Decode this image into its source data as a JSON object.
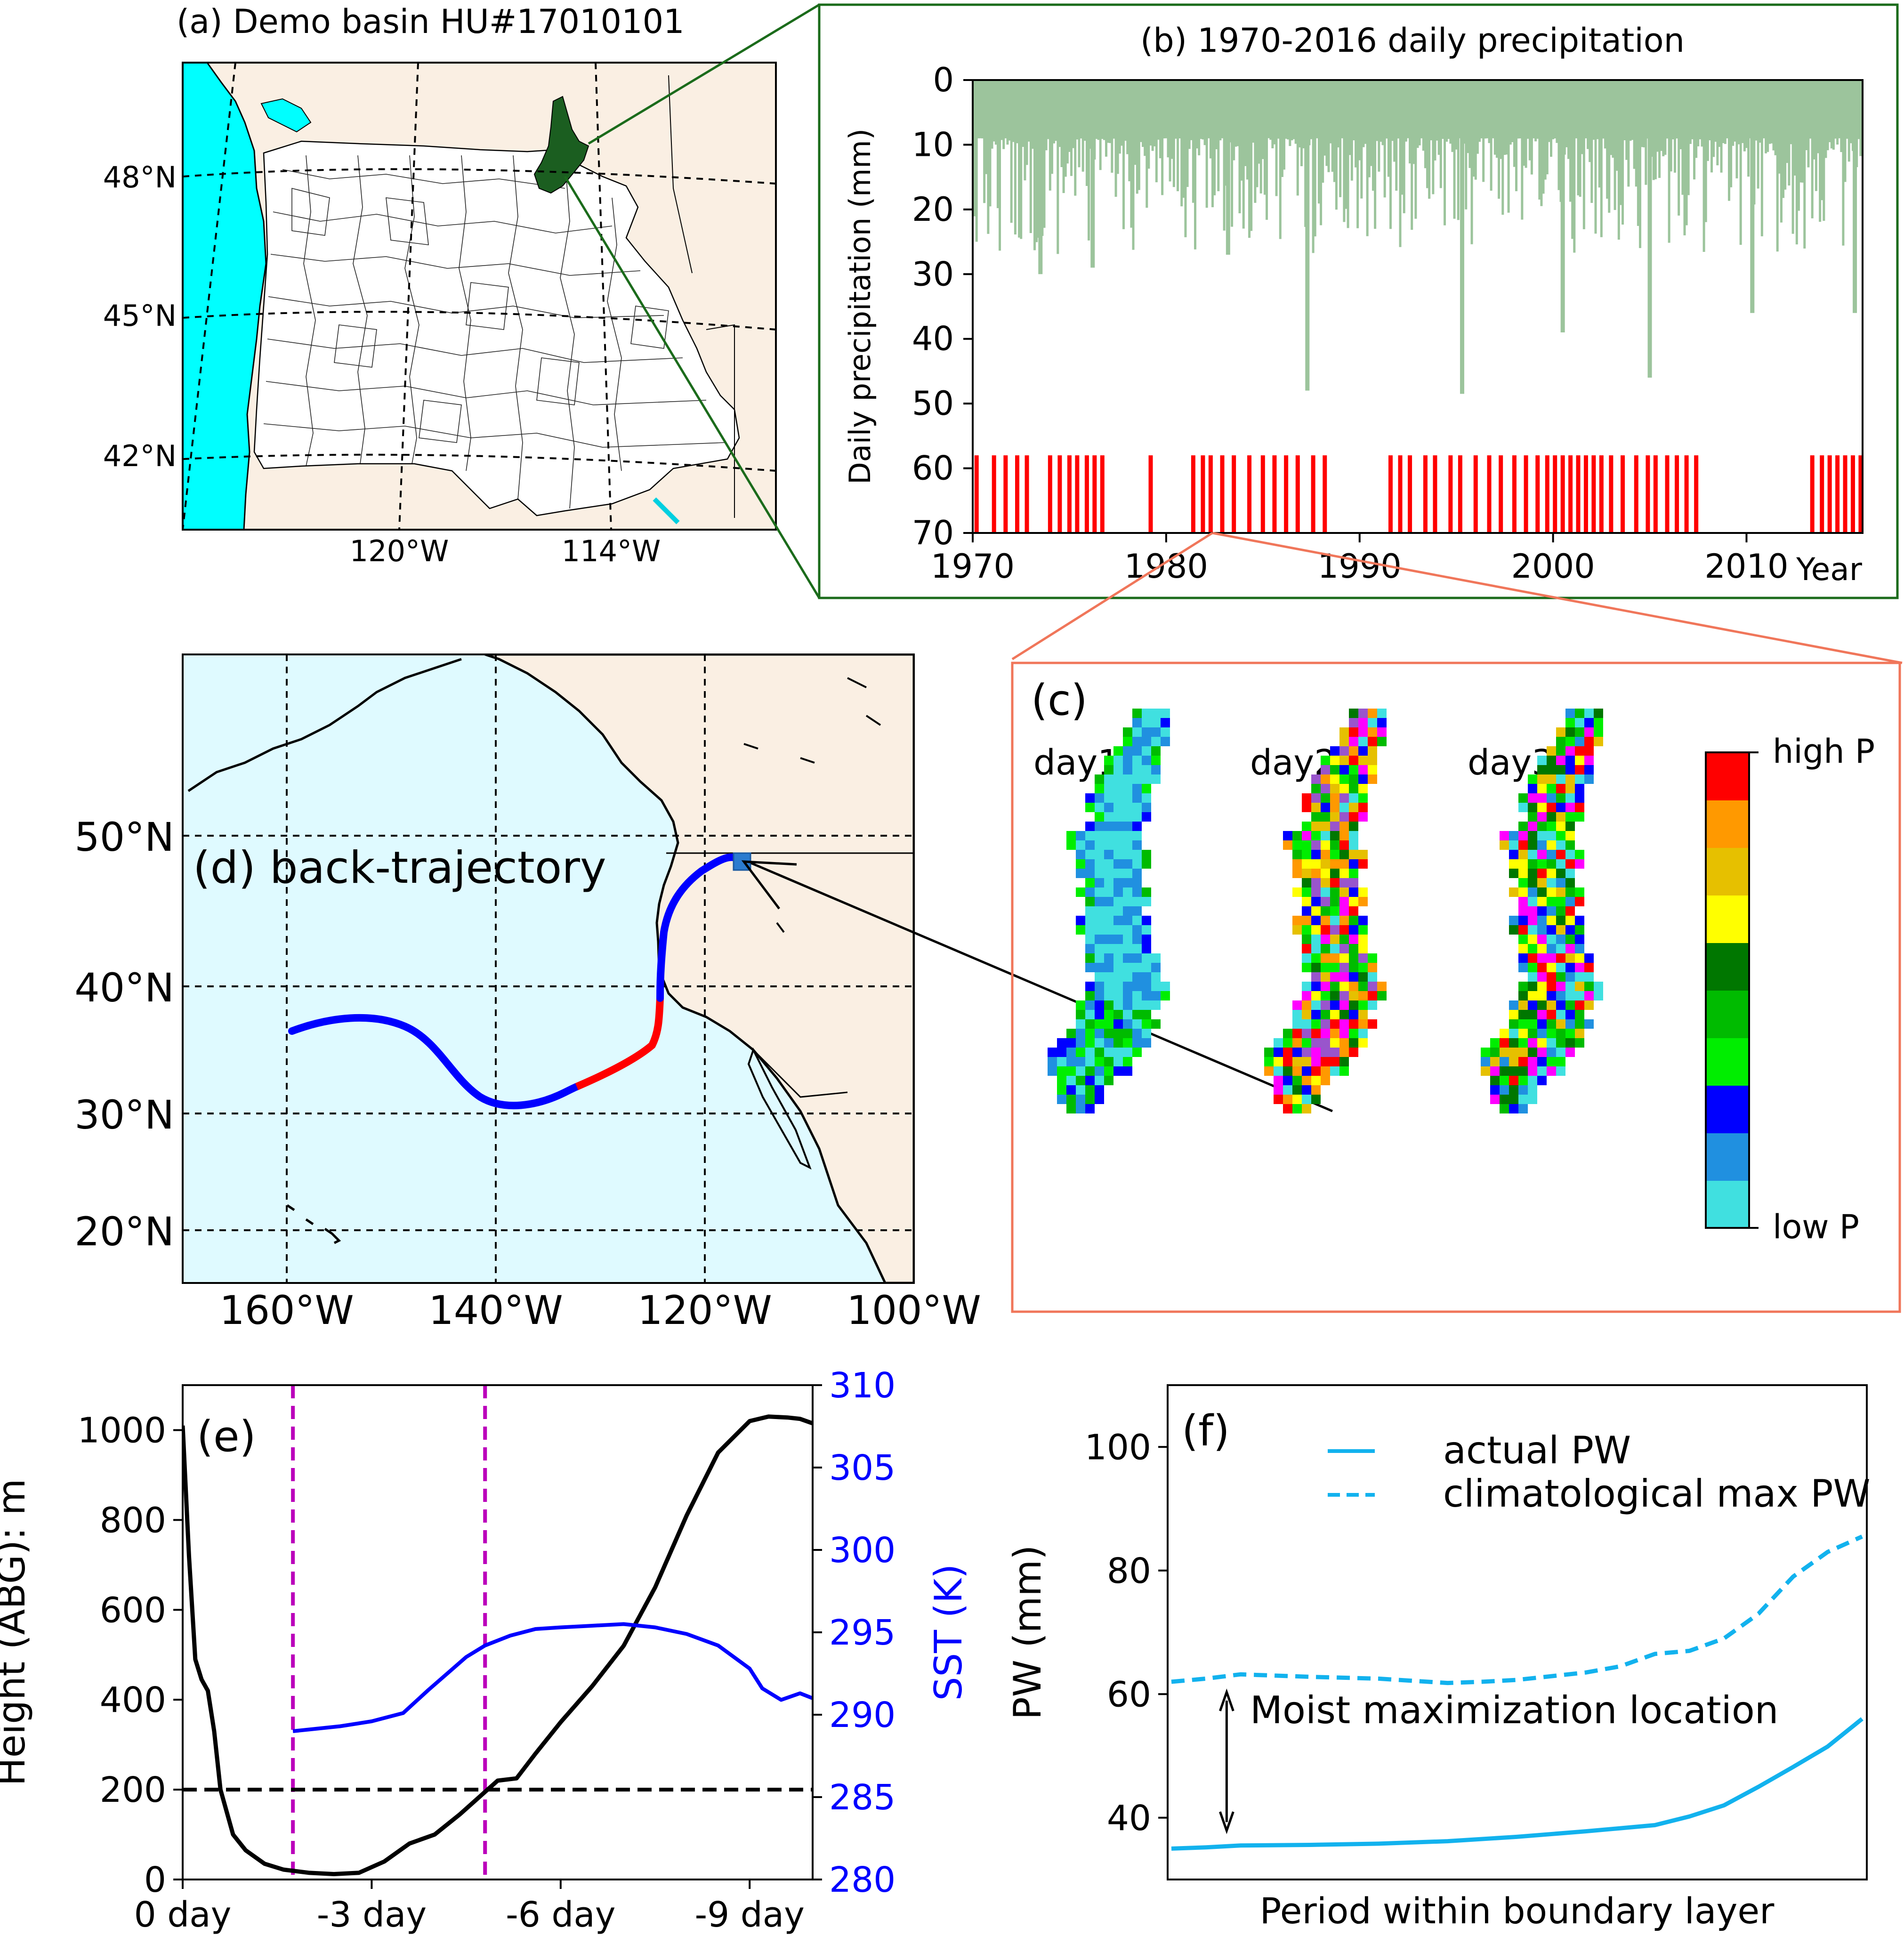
{
  "panels": {
    "a": {
      "title": "(a) Demo basin HU#17010101",
      "lat_labels": [
        "48°N",
        "45°N",
        "42°N"
      ],
      "lon_labels": [
        "120°W",
        "114°W"
      ],
      "colors": {
        "ocean": "#00ffff",
        "land": "#faefe3",
        "basin": "#1b5e20",
        "outline": "#1b6b1b"
      }
    },
    "b": {
      "title": "(b) 1970-2016 daily precipitation",
      "ylabel": "Daily precipitation (mm)",
      "xlabel": "Year",
      "colors": {
        "precip": "#9cc49c",
        "events": "#ff0000",
        "frame": "#1b6b1b"
      }
    },
    "c": {
      "label": "(c)",
      "days": [
        "day1",
        "day2",
        "day3"
      ],
      "cbar_high": "high P",
      "cbar_low": "low P",
      "cbar_colors": [
        "#40e0e0",
        "#2090e0",
        "#0000ff",
        "#00ee00",
        "#00bb00",
        "#007700",
        "#ffff00",
        "#e6c000",
        "#ff9900",
        "#ff0000"
      ],
      "frame_color": "#f0765a"
    },
    "d": {
      "title": "(d) back-trajectory",
      "lat_labels": [
        "50°N",
        "40°N",
        "30°N",
        "20°N"
      ],
      "lon_labels": [
        "160°W",
        "140°W",
        "120°W",
        "100°W"
      ],
      "colors": {
        "ocean": "#dffaff",
        "land": "#faefe3",
        "track": "#0000ff",
        "highlight": "#ff0000"
      }
    },
    "e": {
      "label": "(e)"
    },
    "f": {
      "label": "(f)",
      "annotation": "Moist maximization location"
    }
  },
  "chart_data": [
    {
      "panel": "b",
      "type": "bar",
      "title": "(b) 1970-2016 daily precipitation",
      "xlabel": "Year",
      "ylabel": "Daily precipitation (mm)",
      "xlim": [
        1970,
        2016
      ],
      "ylim": [
        70,
        0
      ],
      "y_inverted": true,
      "xticks": [
        1970,
        1980,
        1990,
        2000,
        2010
      ],
      "yticks": [
        0,
        10,
        20,
        30,
        40,
        50,
        60,
        70
      ],
      "notable_peaks": [
        {
          "x": 1973.5,
          "y": 30
        },
        {
          "x": 1987.3,
          "y": 48
        },
        {
          "x": 1995.3,
          "y": 48.5
        },
        {
          "x": 2005.0,
          "y": 46
        },
        {
          "x": 2000.5,
          "y": 39
        },
        {
          "x": 2015.6,
          "y": 36
        },
        {
          "x": 1983.2,
          "y": 27
        },
        {
          "x": 2010.3,
          "y": 36
        },
        {
          "x": 1976.2,
          "y": 29
        }
      ],
      "series": [
        {
          "name": "events",
          "type": "bar",
          "base": 58,
          "x": [
            1970.2,
            1971.1,
            1971.7,
            1972.3,
            1972.8,
            1974.0,
            1974.5,
            1975.0,
            1975.4,
            1975.9,
            1976.3,
            1976.7,
            1979.2,
            1981.4,
            1981.9,
            1982.3,
            1982.9,
            1983.5,
            1984.3,
            1985.0,
            1985.6,
            1986.2,
            1986.8,
            1987.6,
            1988.2,
            1991.6,
            1992.1,
            1992.6,
            1993.4,
            1993.9,
            1994.7,
            1995.2,
            1996.0,
            1996.7,
            1997.3,
            1998.0,
            1998.6,
            1999.2,
            1999.7,
            2000.1,
            2000.5,
            2000.9,
            2001.3,
            2001.7,
            2002.1,
            2002.5,
            2003.0,
            2003.6,
            2004.3,
            2004.9,
            2005.3,
            2005.9,
            2006.4,
            2006.9,
            2007.4,
            2013.4,
            2013.9,
            2014.3,
            2014.7,
            2015.1,
            2015.5,
            2015.9
          ],
          "values": [
            70,
            70,
            70,
            70,
            70,
            70,
            70,
            70,
            70,
            70,
            70,
            70,
            70,
            70,
            70,
            70,
            70,
            70,
            70,
            70,
            70,
            70,
            70,
            70,
            70,
            70,
            70,
            70,
            70,
            70,
            70,
            70,
            70,
            70,
            70,
            70,
            70,
            70,
            70,
            70,
            70,
            70,
            70,
            70,
            70,
            70,
            70,
            70,
            70,
            70,
            70,
            70,
            70,
            70,
            70,
            70,
            70,
            70,
            70,
            70,
            70,
            70
          ]
        }
      ]
    },
    {
      "panel": "e",
      "type": "line",
      "label": "(e)",
      "ylabel": "Height (ABG): m",
      "y2label": "SST (K)",
      "xlim": [
        0,
        -10
      ],
      "ylim": [
        0,
        1100
      ],
      "y2lim": [
        280,
        310
      ],
      "xticks": [
        0,
        -3,
        -6,
        -9
      ],
      "xtick_labels": [
        "0 day",
        "-3 day",
        "-6 day",
        "-9 day"
      ],
      "yticks": [
        0,
        200,
        400,
        600,
        800,
        1000
      ],
      "y2ticks": [
        280,
        285,
        290,
        295,
        300,
        305,
        310
      ],
      "vlines": [
        -1.75,
        -4.8
      ],
      "hline": 200,
      "series": [
        {
          "name": "height",
          "color": "#000000",
          "x": [
            0,
            -0.1,
            -0.2,
            -0.3,
            -0.4,
            -0.5,
            -0.6,
            -0.8,
            -1.0,
            -1.3,
            -1.6,
            -2.0,
            -2.4,
            -2.8,
            -3.2,
            -3.6,
            -4.0,
            -4.4,
            -4.8,
            -5.0,
            -5.3,
            -5.6,
            -6.0,
            -6.5,
            -7.0,
            -7.5,
            -8.0,
            -8.5,
            -9.0,
            -9.3,
            -9.6,
            -9.8,
            -10.0
          ],
          "values": [
            1010,
            720,
            490,
            445,
            420,
            330,
            200,
            100,
            65,
            35,
            22,
            15,
            12,
            15,
            40,
            80,
            100,
            145,
            195,
            220,
            225,
            280,
            350,
            430,
            520,
            650,
            810,
            950,
            1020,
            1030,
            1028,
            1025,
            1015
          ]
        },
        {
          "name": "SST",
          "axis": "right",
          "color": "#0000ff",
          "x": [
            -1.75,
            -2.0,
            -2.5,
            -3.0,
            -3.5,
            -3.9,
            -4.2,
            -4.5,
            -4.8,
            -5.2,
            -5.6,
            -6.0,
            -6.5,
            -7.0,
            -7.5,
            -8.0,
            -8.5,
            -9.0,
            -9.2,
            -9.5,
            -9.8,
            -10.0
          ],
          "values": [
            289.0,
            289.1,
            289.3,
            289.6,
            290.1,
            291.5,
            292.5,
            293.5,
            294.2,
            294.8,
            295.2,
            295.3,
            295.4,
            295.5,
            295.3,
            294.9,
            294.2,
            292.8,
            291.6,
            290.9,
            291.3,
            291.0
          ]
        }
      ]
    },
    {
      "panel": "f",
      "type": "line",
      "label": "(f)",
      "xlabel": "Period within boundary layer",
      "ylabel": "PW (mm)",
      "ylim": [
        30,
        110
      ],
      "yticks": [
        40,
        60,
        80,
        100
      ],
      "xlim": [
        0,
        100
      ],
      "annotation_arrow": {
        "x": 8,
        "y_from": 62,
        "y_to": 37
      },
      "series": [
        {
          "name": "actual PW",
          "color": "#12b2ee",
          "dash": "solid",
          "x": [
            0,
            5,
            10,
            20,
            30,
            40,
            50,
            60,
            65,
            70,
            75,
            80,
            85,
            90,
            95,
            100
          ],
          "values": [
            35,
            35.2,
            35.5,
            35.6,
            35.8,
            36.2,
            36.9,
            37.8,
            38.3,
            38.8,
            40.2,
            42.0,
            45.0,
            48.2,
            51.5,
            56.0
          ]
        },
        {
          "name": "climatological max PW",
          "color": "#12b2ee",
          "dash": "dashed",
          "x": [
            0,
            5,
            10,
            20,
            30,
            40,
            45,
            50,
            60,
            65,
            70,
            75,
            80,
            85,
            90,
            95,
            100
          ],
          "values": [
            62,
            62.5,
            63.2,
            62.8,
            62.5,
            61.8,
            62.0,
            62.3,
            63.5,
            64.5,
            66.5,
            67.0,
            69.0,
            73.0,
            79.0,
            83.0,
            85.5
          ]
        }
      ]
    }
  ]
}
